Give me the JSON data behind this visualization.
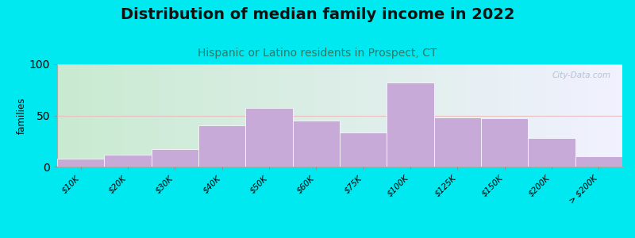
{
  "title": "Distribution of median family income in 2022",
  "subtitle": "Hispanic or Latino residents in Prospect, CT",
  "categories": [
    "$10K",
    "$20K",
    "$30K",
    "$40K",
    "$50K",
    "$60K",
    "$75K",
    "$100K",
    "$125K",
    "$150K",
    "$200K",
    "> $200K"
  ],
  "bar_values": [
    8,
    12,
    17,
    40,
    57,
    45,
    33,
    82,
    48,
    47,
    28,
    10
  ],
  "bar_color": "#c8aad8",
  "bar_edge_color": "#ffffff",
  "bg_outer": "#00e8f0",
  "bg_plot_left": "#c8ead0",
  "bg_plot_right": "#f0f0ff",
  "title_color": "#111111",
  "subtitle_color": "#2a7a6a",
  "title_fontsize": 14,
  "subtitle_fontsize": 10,
  "ylabel": "families",
  "ylim": [
    0,
    100
  ],
  "yticks": [
    0,
    50,
    100
  ],
  "grid_color": "#e8c0c0",
  "watermark": "City-Data.com"
}
